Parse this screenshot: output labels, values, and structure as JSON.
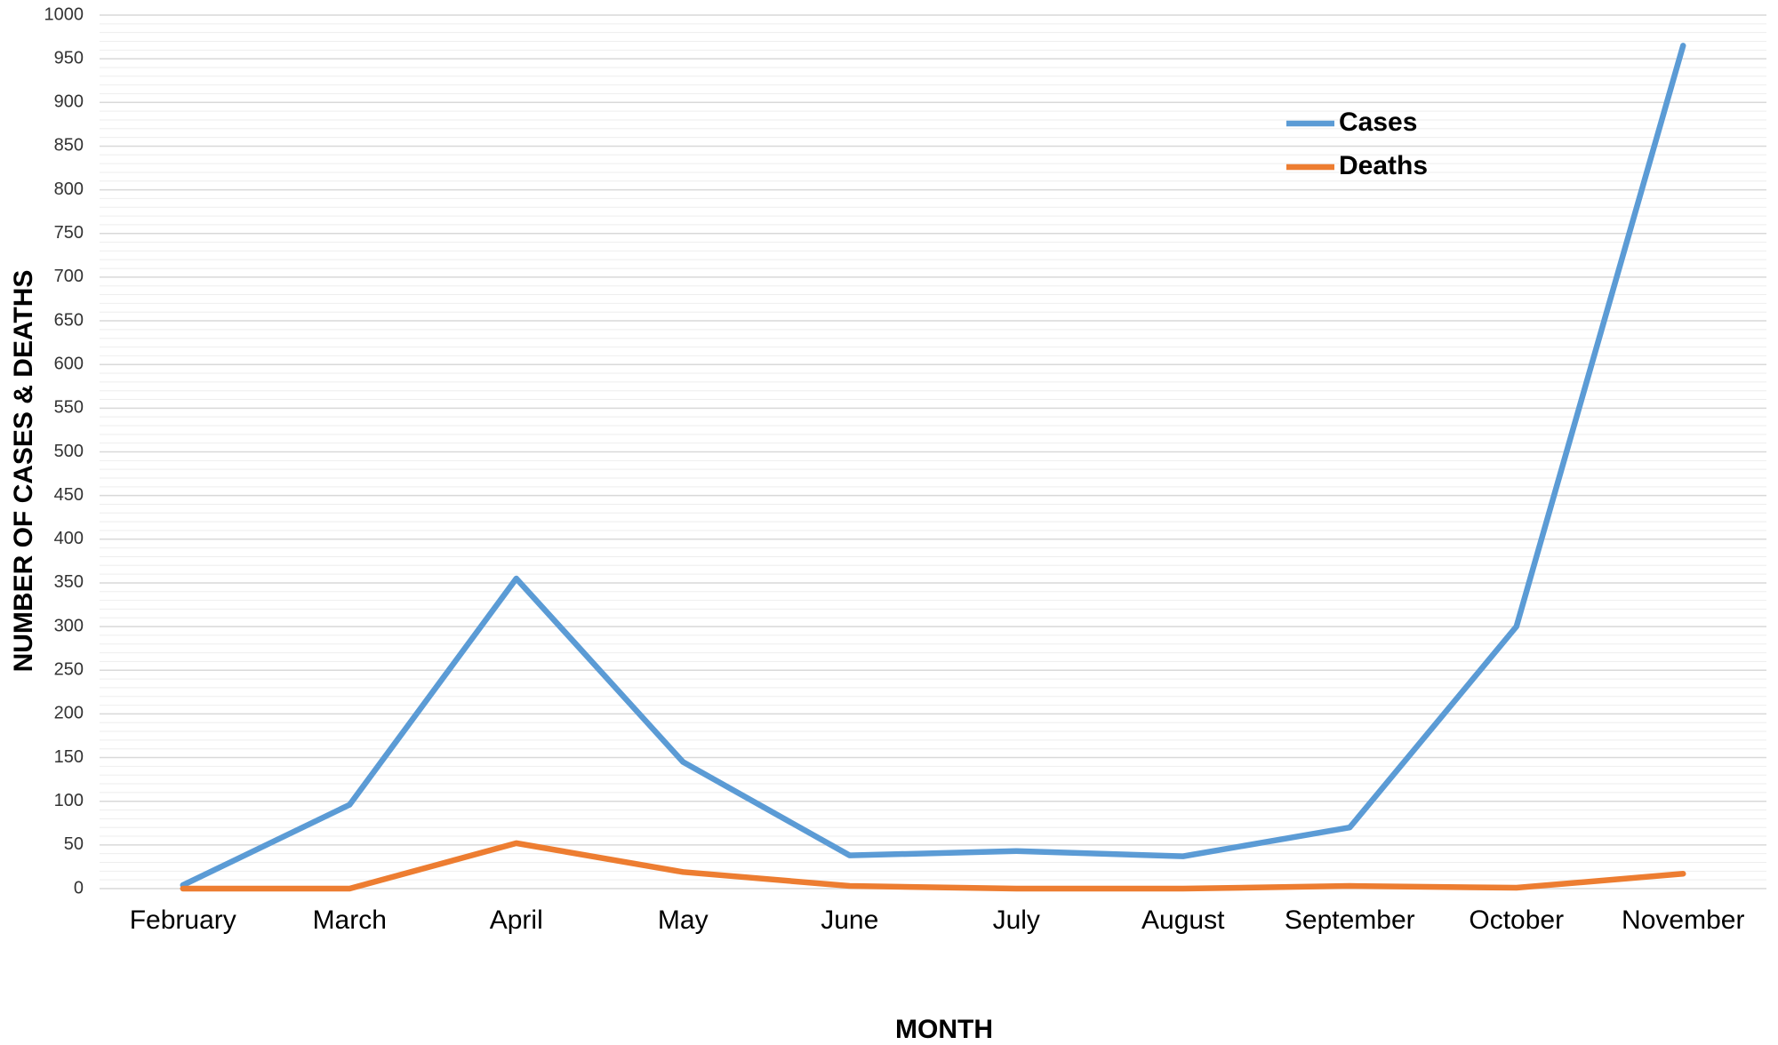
{
  "chart_data": {
    "type": "line",
    "x_label": "MONTH",
    "y_label": "NUMBER OF CASES & DEATHS",
    "categories": [
      "February",
      "March",
      "April",
      "May",
      "June",
      "July",
      "August",
      "September",
      "October",
      "November"
    ],
    "series": [
      {
        "name": "Cases",
        "color": "#5b9bd5",
        "values": [
          4,
          96,
          355,
          145,
          38,
          43,
          37,
          70,
          300,
          965
        ]
      },
      {
        "name": "Deaths",
        "color": "#ed7d31",
        "values": [
          0,
          0,
          52,
          19,
          3,
          0,
          0,
          3,
          1,
          17
        ]
      }
    ],
    "ylim": [
      0,
      1000
    ],
    "yticks": [
      0,
      50,
      100,
      150,
      200,
      250,
      300,
      350,
      400,
      450,
      500,
      550,
      600,
      650,
      700,
      750,
      800,
      850,
      900,
      950,
      1000
    ],
    "grid": true,
    "minor_grid": true,
    "legend": "upper right"
  }
}
